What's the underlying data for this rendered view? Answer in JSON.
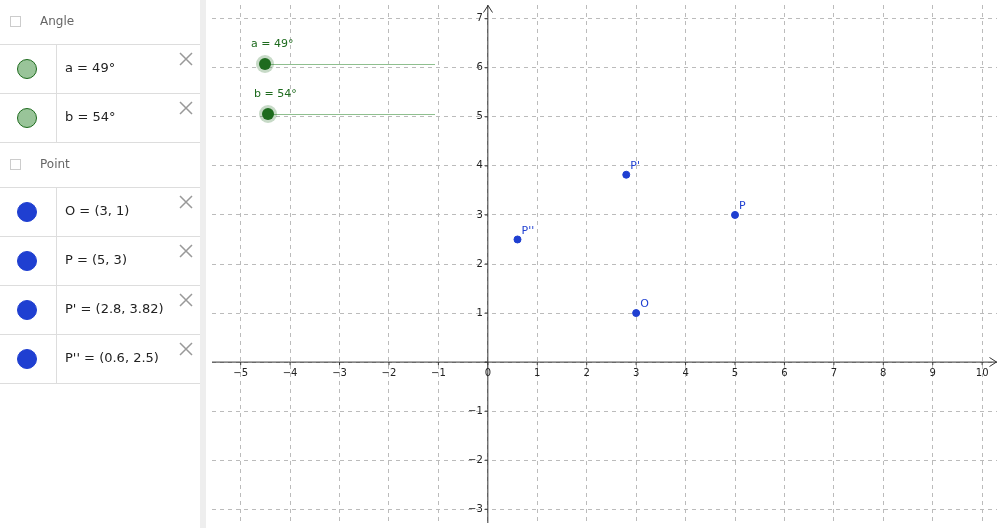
{
  "chart_data": {
    "type": "scatter",
    "xlim": [
      -5.58,
      10.3
    ],
    "ylim": [
      -3.28,
      7.28
    ],
    "xticks": [
      -5,
      -4,
      -3,
      -2,
      -1,
      0,
      1,
      2,
      3,
      4,
      5,
      6,
      7,
      8,
      9,
      10
    ],
    "yticks": [
      -3,
      -2,
      -1,
      {
        "value": 0,
        "label": null
      },
      1,
      2,
      3,
      4,
      5,
      6,
      7
    ],
    "grid": true,
    "legend": "left",
    "marker": "circle",
    "series": [
      {
        "name": "O = (3, 1)",
        "color": "#1f3fd1",
        "x": [
          3
        ],
        "values": [
          1
        ]
      },
      {
        "name": "P = (5, 3)",
        "color": "#1f3fd1",
        "x": [
          5
        ],
        "values": [
          3
        ]
      },
      {
        "name": "P' = (2.8, 3.82)",
        "color": "#1f3fd1",
        "x": [
          2.8
        ],
        "values": [
          3.82
        ]
      },
      {
        "name": "P'' = (0.6, 2.5)",
        "color": "#1f3fd1",
        "x": [
          0.6
        ],
        "values": [
          2.5
        ]
      }
    ],
    "annotations": [
      "Angle",
      "a = 49°",
      "b = 54°",
      "Point",
      "a = 49°",
      "b = 54°",
      {
        "text": "O",
        "x": 3,
        "y": 1
      },
      {
        "text": "P",
        "x": 5,
        "y": 3
      },
      {
        "text": "P'",
        "x": 2.8,
        "y": 3.82
      },
      {
        "text": "P''",
        "x": 0.6,
        "y": 2.5
      }
    ]
  }
}
